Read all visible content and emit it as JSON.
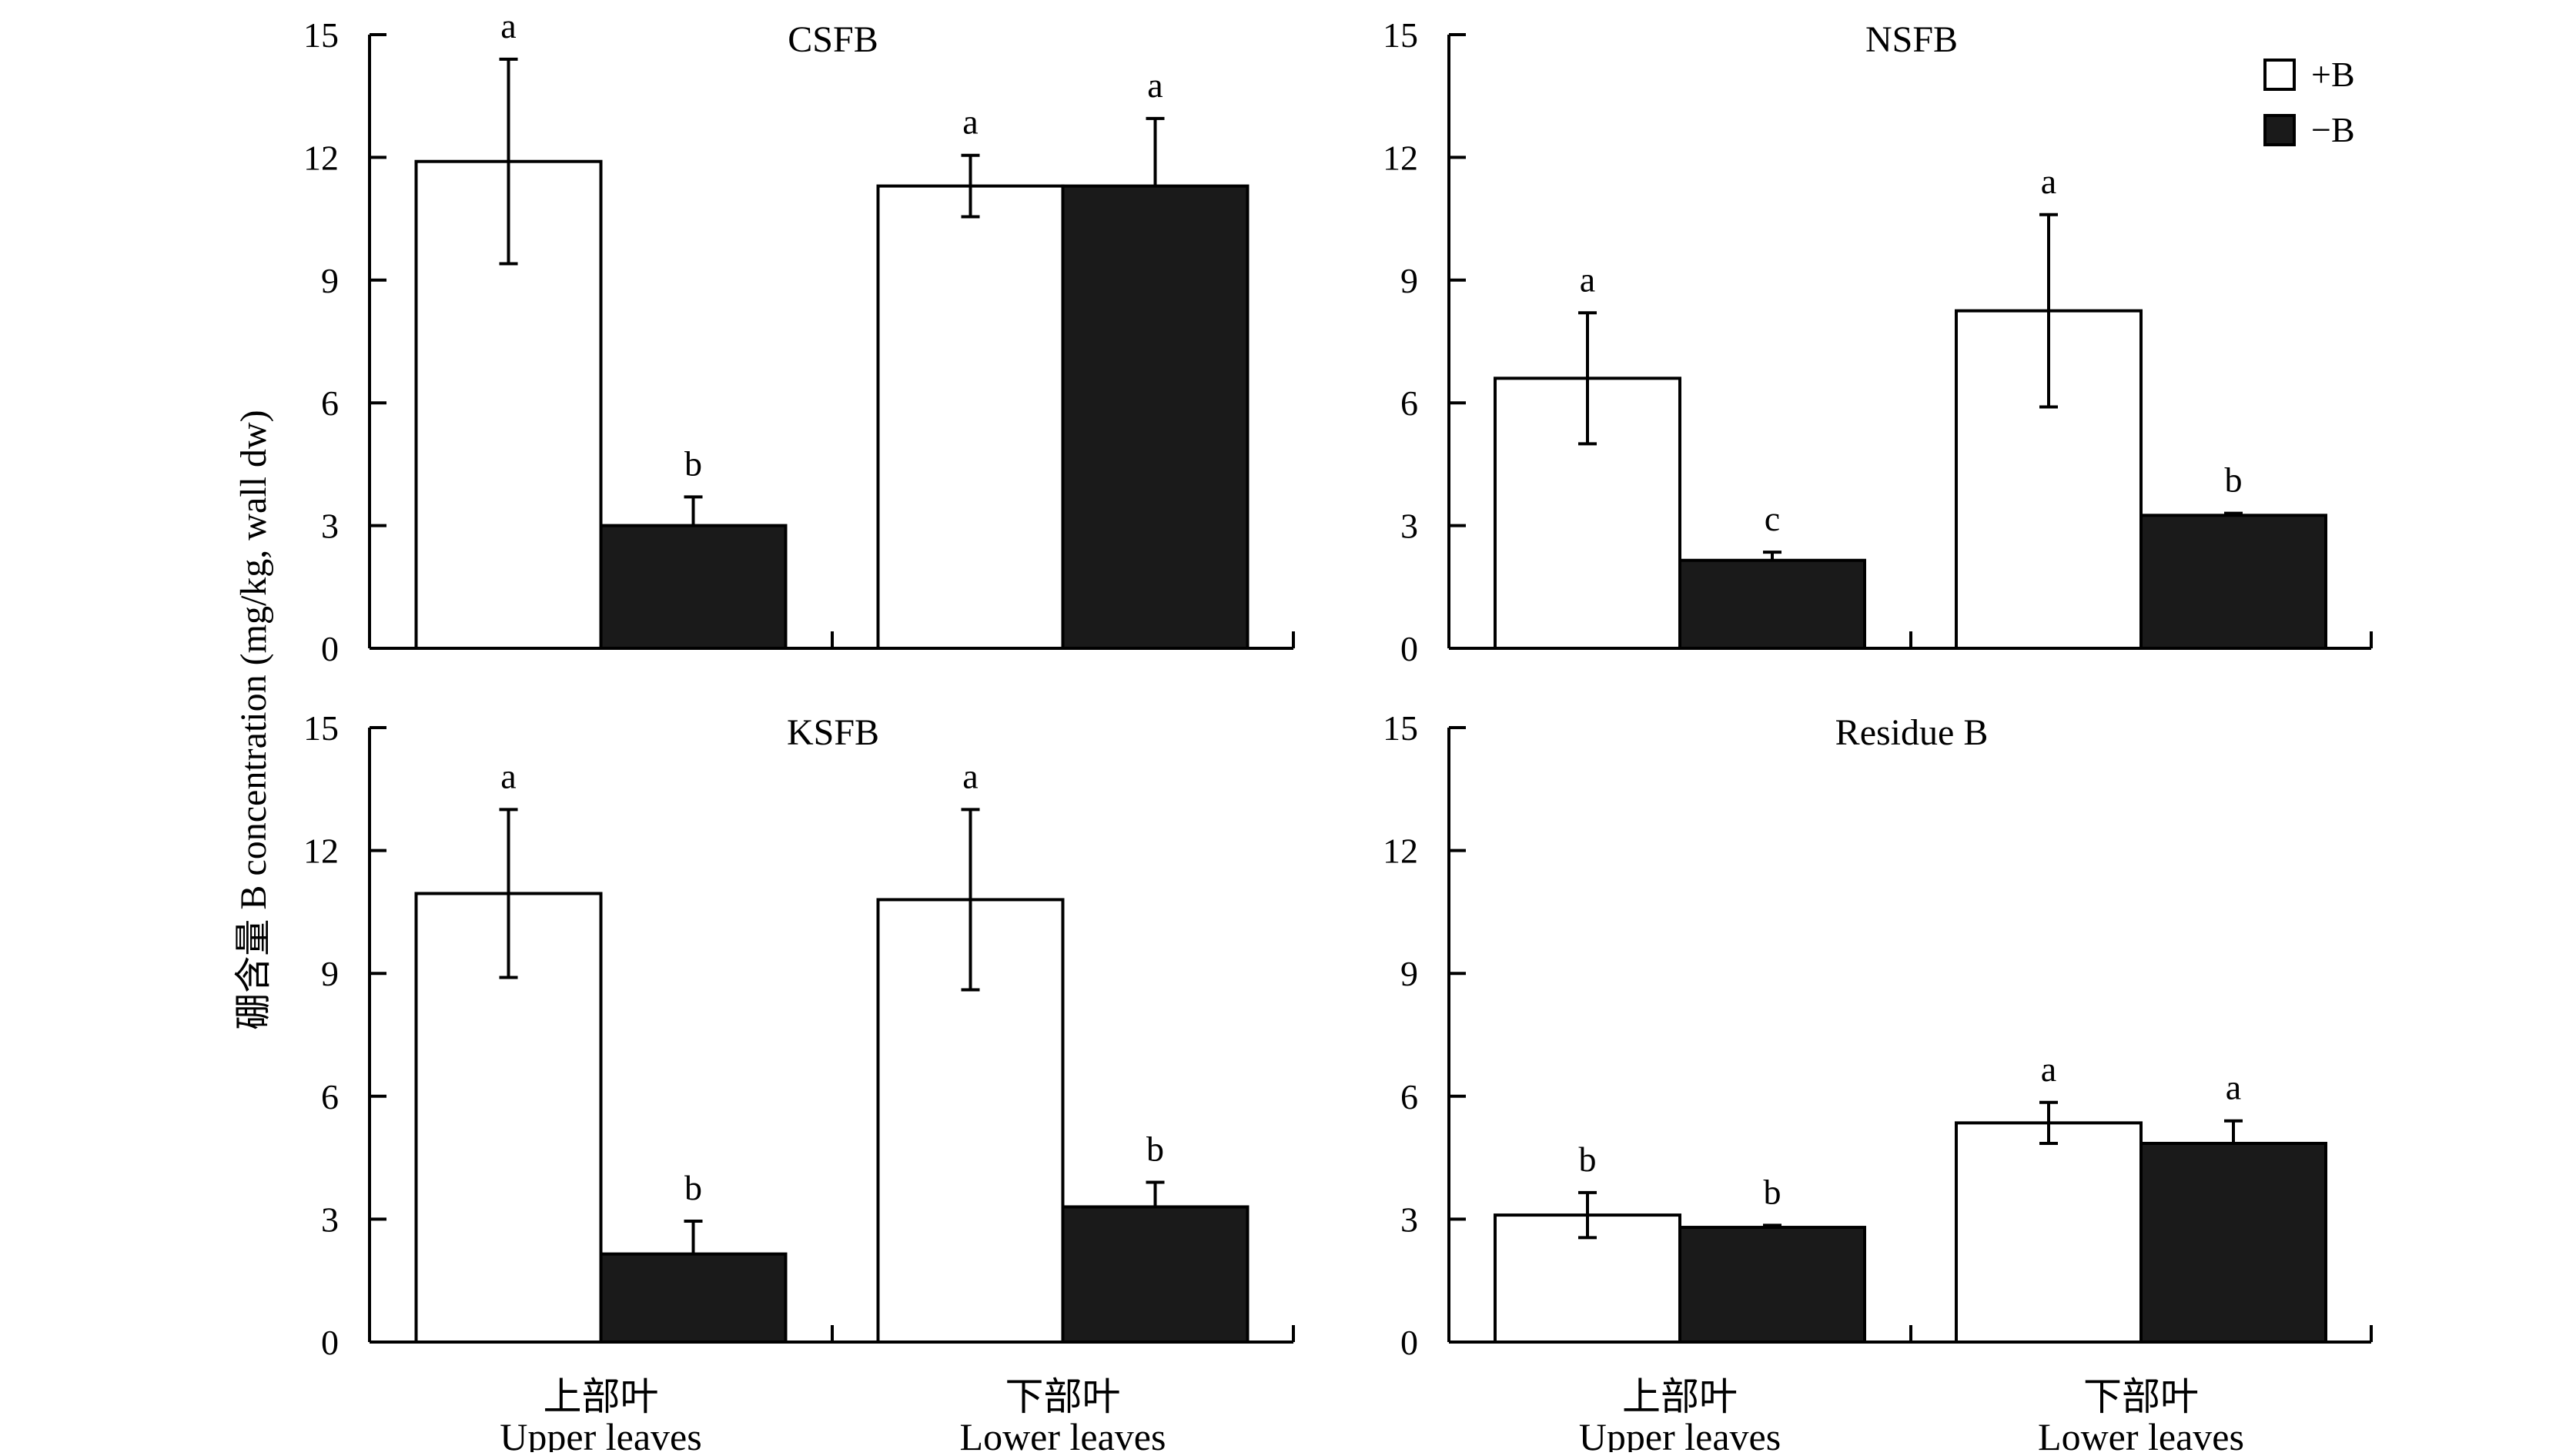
{
  "figure": {
    "ylabel": "硼含量 B concentration (mg/kg, wall dw)",
    "legend": [
      {
        "label": "+B",
        "fill": "#ffffff"
      },
      {
        "label": "−B",
        "fill": "#1a1a1a"
      }
    ]
  },
  "chart_data": [
    {
      "type": "bar",
      "title": "CSFB",
      "categories": [
        {
          "zh": "上部叶",
          "en": "Upper leaves"
        },
        {
          "zh": "下部叶",
          "en": "Lower leaves"
        }
      ],
      "series": [
        {
          "name": "+B",
          "values": [
            11.9,
            11.3
          ],
          "errors": [
            2.5,
            0.75
          ],
          "labels": [
            "a",
            "a"
          ]
        },
        {
          "name": "−B",
          "values": [
            3.0,
            11.3
          ],
          "errors": [
            0.7,
            1.65
          ],
          "labels": [
            "b",
            "a"
          ]
        }
      ],
      "ylim": [
        0,
        15
      ],
      "yticks": [
        0,
        3,
        6,
        9,
        12,
        15
      ],
      "show_xlabels": false
    },
    {
      "type": "bar",
      "title": "NSFB",
      "categories": [
        {
          "zh": "上部叶",
          "en": "Upper leaves"
        },
        {
          "zh": "下部叶",
          "en": "Lower leaves"
        }
      ],
      "series": [
        {
          "name": "+B",
          "values": [
            6.6,
            8.25
          ],
          "errors": [
            1.6,
            2.35
          ],
          "labels": [
            "a",
            "a"
          ]
        },
        {
          "name": "−B",
          "values": [
            2.15,
            3.25
          ],
          "errors": [
            0.2,
            0.05
          ],
          "labels": [
            "c",
            "b"
          ]
        }
      ],
      "ylim": [
        0,
        15
      ],
      "yticks": [
        0,
        3,
        6,
        9,
        12,
        15
      ],
      "show_xlabels": false,
      "legend": true
    },
    {
      "type": "bar",
      "title": "KSFB",
      "categories": [
        {
          "zh": "上部叶",
          "en": "Upper leaves"
        },
        {
          "zh": "下部叶",
          "en": "Lower leaves"
        }
      ],
      "series": [
        {
          "name": "+B",
          "values": [
            10.95,
            10.8
          ],
          "errors": [
            2.05,
            2.2
          ],
          "labels": [
            "a",
            "a"
          ]
        },
        {
          "name": "−B",
          "values": [
            2.15,
            3.3
          ],
          "errors": [
            0.8,
            0.6
          ],
          "labels": [
            "b",
            "b"
          ]
        }
      ],
      "ylim": [
        0,
        15
      ],
      "yticks": [
        0,
        3,
        6,
        9,
        12,
        15
      ],
      "show_xlabels": true
    },
    {
      "type": "bar",
      "title": "Residue B",
      "categories": [
        {
          "zh": "上部叶",
          "en": "Upper leaves"
        },
        {
          "zh": "下部叶",
          "en": "Lower leaves"
        }
      ],
      "series": [
        {
          "name": "+B",
          "values": [
            3.1,
            5.35
          ],
          "errors": [
            0.55,
            0.5
          ],
          "labels": [
            "b",
            "a"
          ]
        },
        {
          "name": "−B",
          "values": [
            2.8,
            4.85
          ],
          "errors": [
            0.05,
            0.55
          ],
          "labels": [
            "b",
            "a"
          ]
        }
      ],
      "ylim": [
        0,
        15
      ],
      "yticks": [
        0,
        3,
        6,
        9,
        12,
        15
      ],
      "show_xlabels": true
    }
  ]
}
